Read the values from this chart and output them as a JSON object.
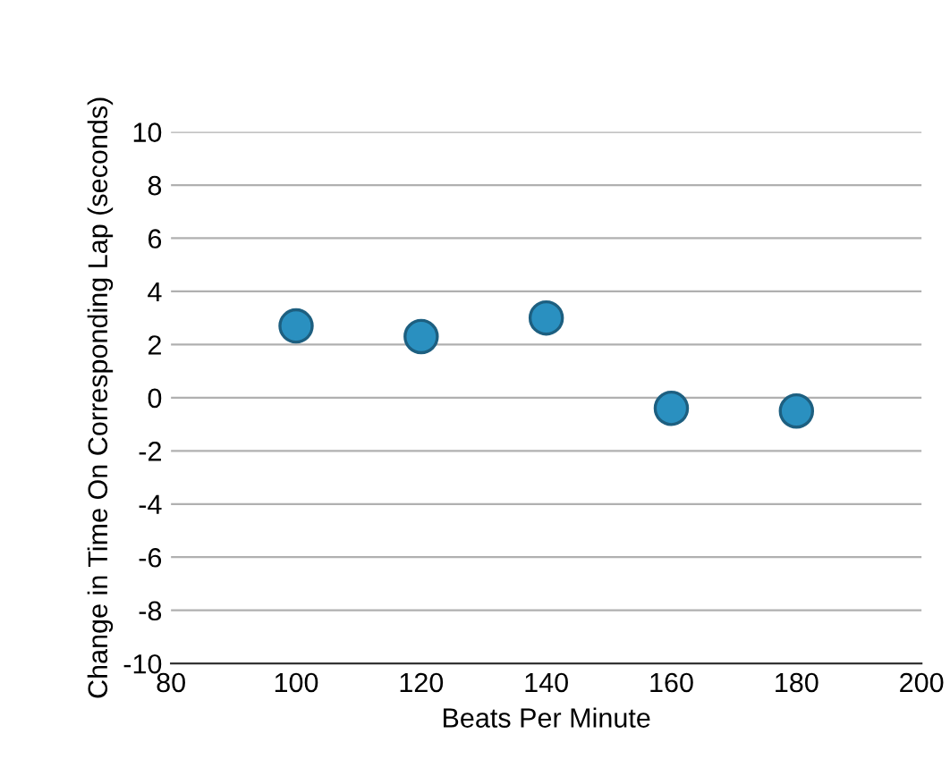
{
  "chart_data": {
    "type": "scatter",
    "xlabel": "Beats Per Minute",
    "ylabel": "Change in Time On Corresponding Lap (seconds)",
    "x": [
      100,
      120,
      140,
      160,
      180
    ],
    "series": [
      {
        "color": "#2a90c0",
        "values": [
          2.7,
          2.3,
          3.0,
          -0.4,
          -0.5
        ]
      }
    ],
    "xlim": [
      80,
      200
    ],
    "xticks": [
      80,
      100,
      120,
      140,
      160,
      180,
      200
    ],
    "ylim": [
      -10,
      10
    ],
    "yticks": [
      -10,
      -8,
      -6,
      -4,
      -2,
      0,
      2,
      4,
      6,
      8,
      10
    ],
    "grid": "y",
    "marker": "circle"
  }
}
